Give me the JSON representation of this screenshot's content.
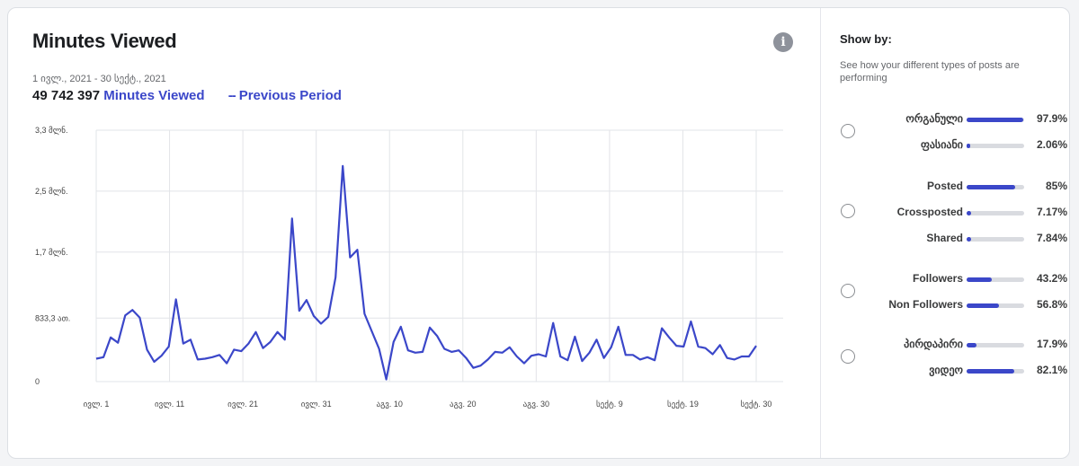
{
  "header": {
    "title": "Minutes Viewed",
    "date_range": "1 ივლ., 2021 - 30 სექტ., 2021",
    "total": "49 742 397",
    "metric_label": "Minutes Viewed",
    "previous_label": "Previous Period"
  },
  "panel": {
    "title": "Show by:",
    "description": "See how your different types of posts are performing",
    "groups": [
      {
        "rows": [
          {
            "label": "ორგანული",
            "value": 97.9,
            "pct": "97.9%"
          },
          {
            "label": "ფასიანი",
            "value": 2.06,
            "pct": "2.06%"
          }
        ]
      },
      {
        "rows": [
          {
            "label": "Posted",
            "value": 85,
            "pct": "85%"
          },
          {
            "label": "Crossposted",
            "value": 7.17,
            "pct": "7.17%"
          },
          {
            "label": "Shared",
            "value": 7.84,
            "pct": "7.84%"
          }
        ]
      },
      {
        "rows": [
          {
            "label": "Followers",
            "value": 43.2,
            "pct": "43.2%"
          },
          {
            "label": "Non Followers",
            "value": 56.8,
            "pct": "56.8%"
          }
        ]
      },
      {
        "rows": [
          {
            "label": "პირდაპირი",
            "value": 17.9,
            "pct": "17.9%"
          },
          {
            "label": "ვიდეო",
            "value": 82.1,
            "pct": "82.1%"
          }
        ]
      }
    ]
  },
  "colors": {
    "accent": "#3b47c9",
    "track": "#d9dbe0"
  },
  "chart_data": {
    "type": "line",
    "ylim": [
      0,
      3300000
    ],
    "y_ticks": [
      {
        "value": 0,
        "label": "0"
      },
      {
        "value": 833300,
        "label": "833,3 ათ."
      },
      {
        "value": 1700000,
        "label": "1,7 მლნ."
      },
      {
        "value": 2500000,
        "label": "2,5 მლნ."
      },
      {
        "value": 3300000,
        "label": "3,3 მლნ."
      }
    ],
    "x_ticks": [
      "ივლ. 1",
      "ივლ. 11",
      "ივლ. 21",
      "ივლ. 31",
      "აგვ. 10",
      "აგვ. 20",
      "აგვ. 30",
      "სექტ. 9",
      "სექტ. 19",
      "სექტ. 30"
    ],
    "grid": true,
    "series": [
      {
        "values": [
          300000,
          320000,
          580000,
          510000,
          870000,
          940000,
          840000,
          420000,
          260000,
          340000,
          460000,
          1080000,
          500000,
          550000,
          290000,
          300000,
          320000,
          350000,
          240000,
          420000,
          400000,
          500000,
          650000,
          440000,
          520000,
          650000,
          550000,
          2140000,
          930000,
          1070000,
          860000,
          760000,
          850000,
          1370000,
          2830000,
          1630000,
          1730000,
          890000,
          660000,
          430000,
          30000,
          520000,
          720000,
          410000,
          380000,
          390000,
          710000,
          600000,
          430000,
          390000,
          410000,
          310000,
          180000,
          210000,
          290000,
          390000,
          380000,
          450000,
          330000,
          240000,
          340000,
          360000,
          330000,
          770000,
          330000,
          280000,
          590000,
          270000,
          380000,
          550000,
          310000,
          450000,
          720000,
          350000,
          350000,
          290000,
          320000,
          280000,
          700000,
          580000,
          470000,
          460000,
          790000,
          460000,
          440000,
          360000,
          480000,
          310000,
          290000,
          330000,
          330000,
          470000
        ]
      }
    ]
  }
}
